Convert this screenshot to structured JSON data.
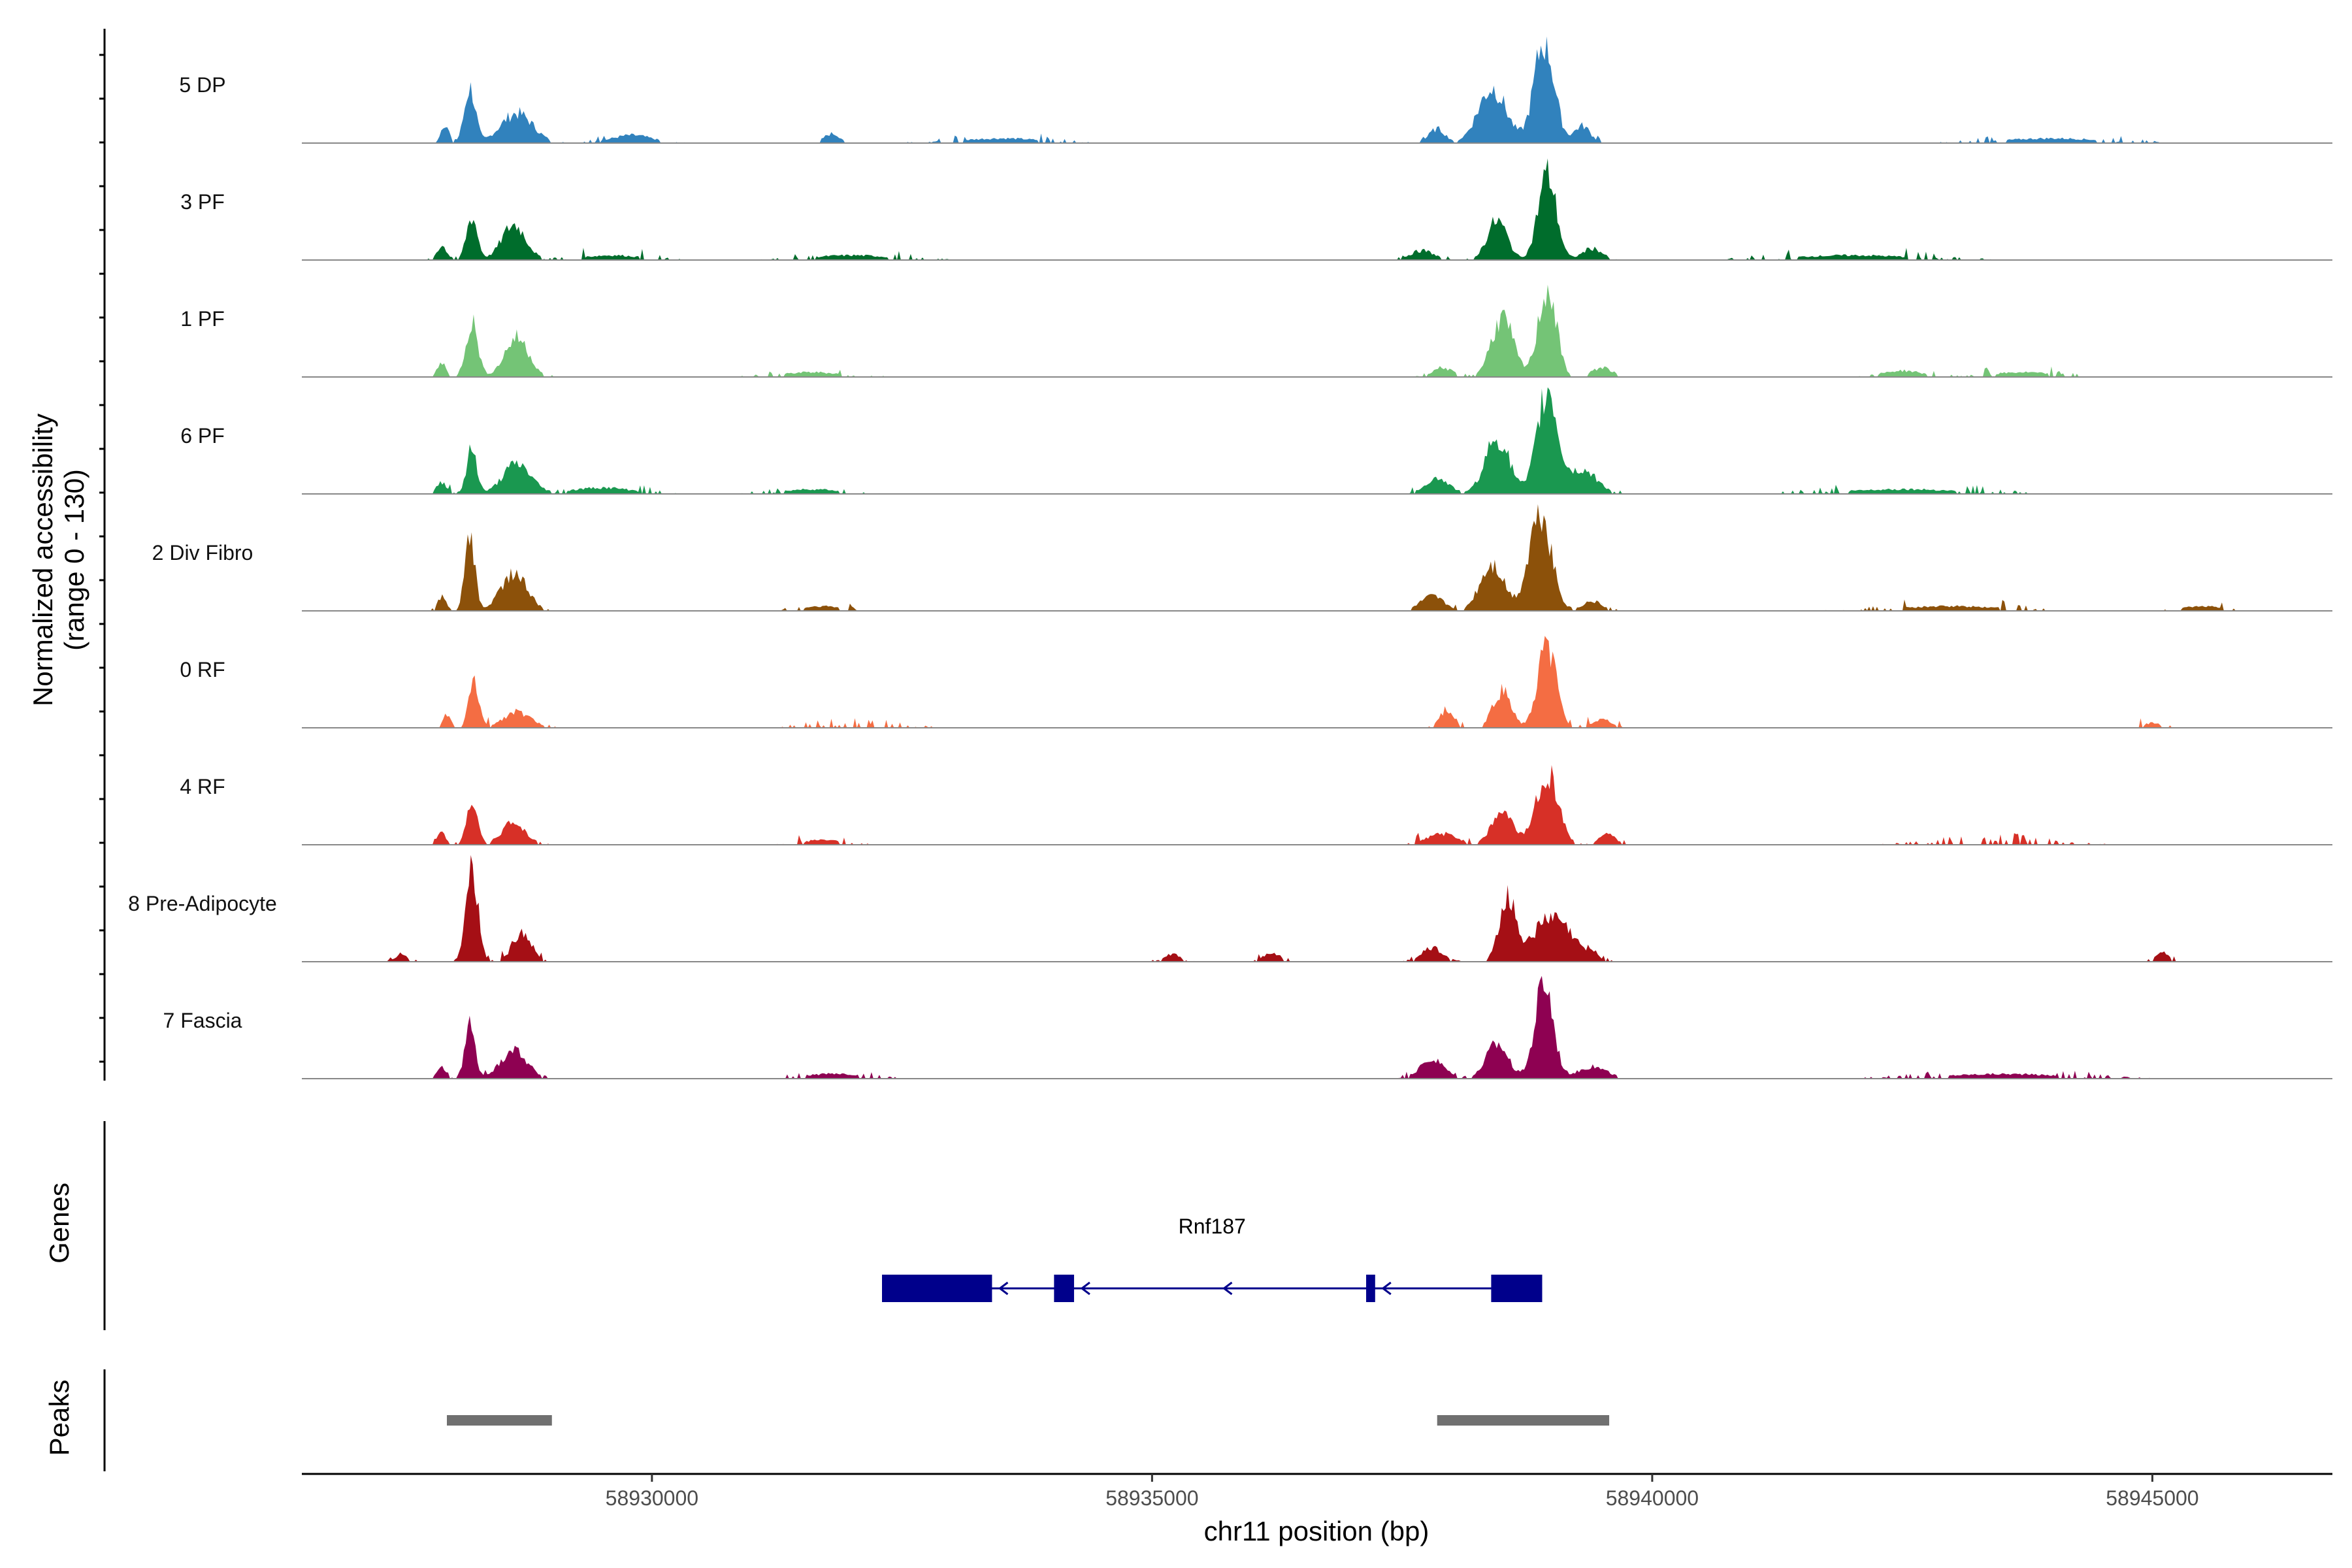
{
  "chart_data": {
    "type": "area",
    "title": "",
    "ylabel_line1": "Normalized accessibility",
    "ylabel_line2": "(range 0 - 130)",
    "xlabel": "chr11 position (bp)",
    "xlim": [
      58926500,
      58946800
    ],
    "ylim": [
      0,
      130
    ],
    "x_ticks": [
      58930000,
      58935000,
      58940000,
      58945000
    ],
    "x_tick_labels": [
      "58930000",
      "58935000",
      "58940000",
      "58945000"
    ],
    "series": [
      {
        "name": "5 DP",
        "color": "#3182bd",
        "peaks": [
          [
            58927930,
            25,
            40
          ],
          [
            58928180,
            70,
            55
          ],
          [
            58928650,
            38,
            160
          ],
          [
            58929800,
            10,
            200
          ],
          [
            58931800,
            12,
            80
          ],
          [
            58933500,
            6,
            400
          ],
          [
            58937850,
            18,
            80
          ],
          [
            58938400,
            70,
            140
          ],
          [
            58938920,
            130,
            100
          ],
          [
            58939300,
            22,
            80
          ],
          [
            58944000,
            6,
            500
          ]
        ]
      },
      {
        "name": "3 PF",
        "color": "#006d2c",
        "peaks": [
          [
            58927900,
            18,
            50
          ],
          [
            58928200,
            55,
            55
          ],
          [
            58928620,
            45,
            120
          ],
          [
            58929600,
            6,
            300
          ],
          [
            58932000,
            6,
            400
          ],
          [
            58937700,
            12,
            120
          ],
          [
            58938450,
            50,
            100
          ],
          [
            58938950,
            110,
            90
          ],
          [
            58939400,
            15,
            100
          ],
          [
            58942000,
            6,
            600
          ]
        ]
      },
      {
        "name": "1 PF",
        "color": "#74c476",
        "peaks": [
          [
            58927900,
            18,
            45
          ],
          [
            58928200,
            70,
            60
          ],
          [
            58928650,
            50,
            120
          ],
          [
            58931600,
            6,
            300
          ],
          [
            58937900,
            12,
            100
          ],
          [
            58938500,
            75,
            110
          ],
          [
            58938950,
            112,
            90
          ],
          [
            58939500,
            12,
            100
          ],
          [
            58942500,
            8,
            200
          ],
          [
            58943700,
            6,
            300
          ]
        ]
      },
      {
        "name": "6 PF",
        "color": "#1a9850",
        "peaks": [
          [
            58927900,
            15,
            50
          ],
          [
            58928200,
            58,
            50
          ],
          [
            58928650,
            38,
            140
          ],
          [
            58929500,
            8,
            300
          ],
          [
            58931600,
            6,
            300
          ],
          [
            58937850,
            20,
            120
          ],
          [
            58938450,
            72,
            120
          ],
          [
            58938950,
            130,
            100
          ],
          [
            58939300,
            30,
            150
          ],
          [
            58942500,
            6,
            600
          ]
        ]
      },
      {
        "name": "2 Div Fibro",
        "color": "#8c510a",
        "peaks": [
          [
            58927900,
            18,
            40
          ],
          [
            58928180,
            92,
            50
          ],
          [
            58928620,
            48,
            130
          ],
          [
            58931700,
            6,
            200
          ],
          [
            58937800,
            18,
            120
          ],
          [
            58938400,
            60,
            120
          ],
          [
            58938880,
            130,
            110
          ],
          [
            58939400,
            12,
            100
          ],
          [
            58943000,
            6,
            500
          ],
          [
            58945500,
            6,
            200
          ]
        ]
      },
      {
        "name": "0 RF",
        "color": "#f46d43",
        "peaks": [
          [
            58927950,
            16,
            40
          ],
          [
            58928220,
            60,
            50
          ],
          [
            58928650,
            20,
            140
          ],
          [
            58932000,
            4,
            400
          ],
          [
            58937950,
            24,
            70
          ],
          [
            58938500,
            48,
            90
          ],
          [
            58938950,
            105,
            90
          ],
          [
            58939500,
            10,
            100
          ],
          [
            58945000,
            6,
            100
          ]
        ]
      },
      {
        "name": "4 RF",
        "color": "#d73027",
        "peaks": [
          [
            58927900,
            15,
            45
          ],
          [
            58928200,
            52,
            55
          ],
          [
            58928620,
            28,
            120
          ],
          [
            58931700,
            6,
            200
          ],
          [
            58937900,
            14,
            150
          ],
          [
            58938500,
            40,
            110
          ],
          [
            58938950,
            90,
            110
          ],
          [
            58939550,
            15,
            80
          ],
          [
            58943400,
            4,
            500
          ]
        ]
      },
      {
        "name": "8 Pre-Adipocyte",
        "color": "#a50f15",
        "peaks": [
          [
            58927500,
            10,
            60
          ],
          [
            58928200,
            125,
            60
          ],
          [
            58928700,
            40,
            90
          ],
          [
            58935200,
            10,
            80
          ],
          [
            58936200,
            12,
            80
          ],
          [
            58937800,
            18,
            100
          ],
          [
            58938550,
            80,
            80
          ],
          [
            58939000,
            55,
            200
          ],
          [
            58939400,
            10,
            50
          ],
          [
            58945100,
            12,
            60
          ]
        ]
      },
      {
        "name": "7 Fascia",
        "color": "#8e0152",
        "peaks": [
          [
            58927900,
            14,
            50
          ],
          [
            58928180,
            70,
            50
          ],
          [
            58928620,
            38,
            130
          ],
          [
            58931800,
            6,
            300
          ],
          [
            58937800,
            25,
            120
          ],
          [
            58938450,
            45,
            110
          ],
          [
            58938920,
            125,
            90
          ],
          [
            58939400,
            15,
            150
          ],
          [
            58943500,
            6,
            600
          ]
        ]
      }
    ],
    "genes": [
      {
        "name": "Rnf187",
        "strand": "-",
        "start": 58932300,
        "end": 58938900,
        "exons": [
          [
            58932300,
            58933400
          ],
          [
            58934020,
            58934220
          ],
          [
            58937140,
            58937230
          ],
          [
            58938390,
            58938900
          ]
        ]
      }
    ],
    "peaks_track": [
      [
        58927950,
        58929000
      ],
      [
        58937850,
        58939570
      ]
    ],
    "panel_titles": {
      "genes": "Genes",
      "peaks": "Peaks"
    }
  }
}
